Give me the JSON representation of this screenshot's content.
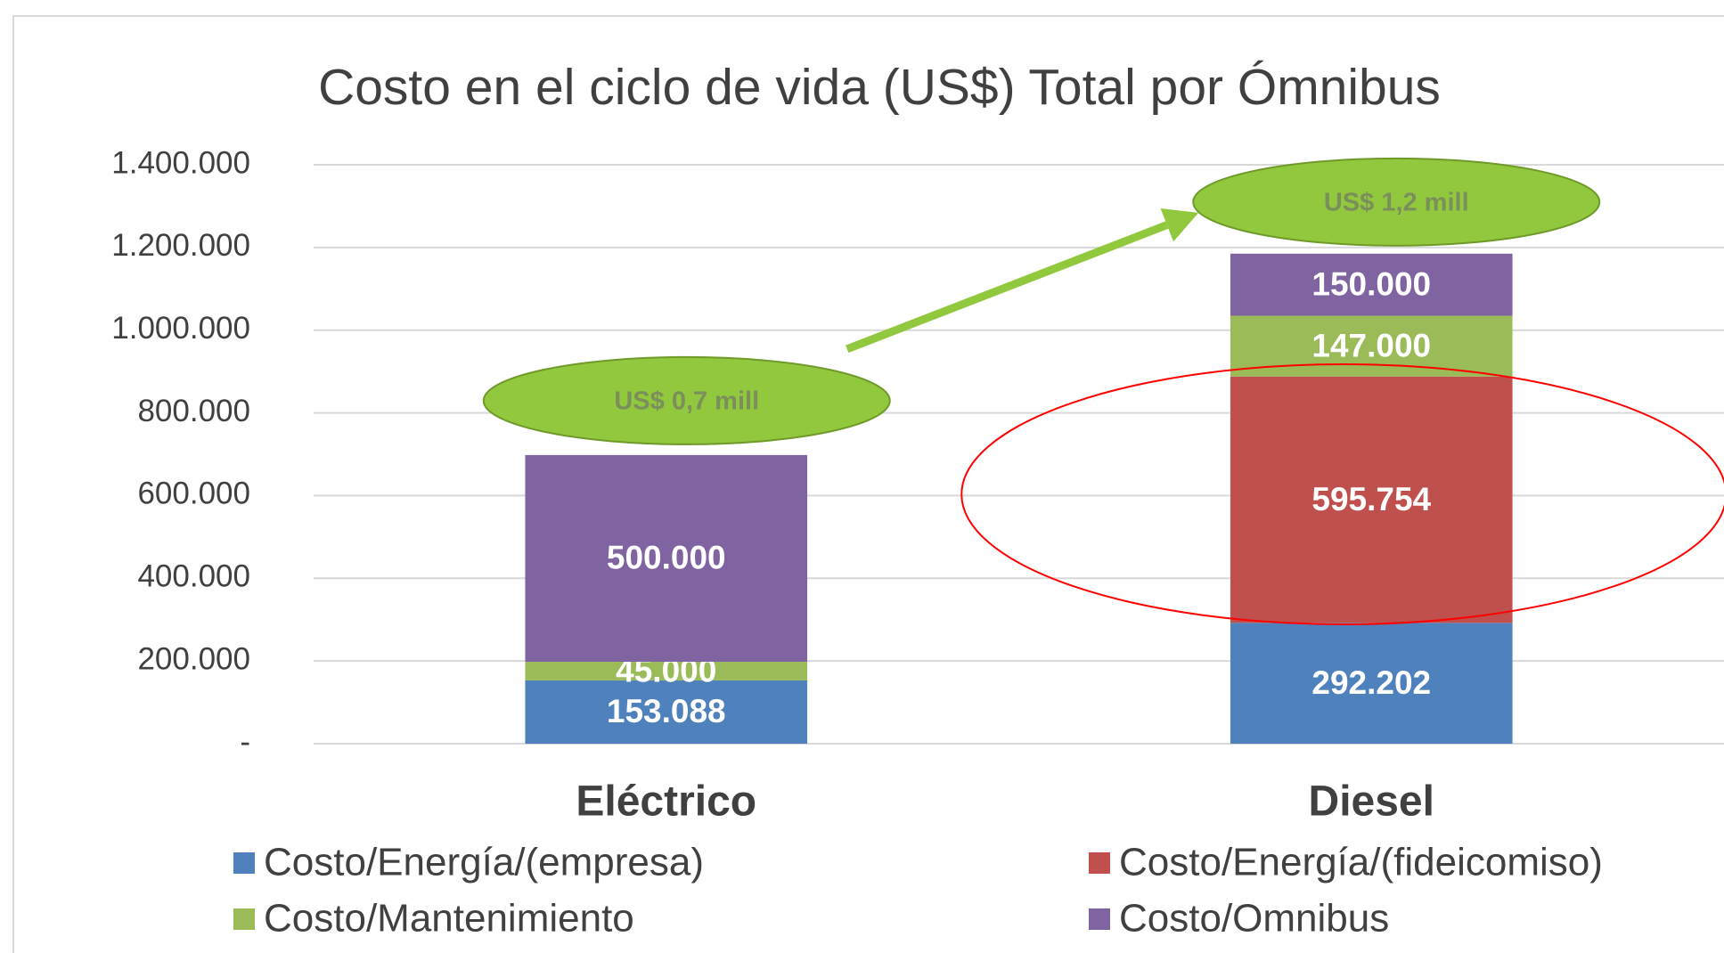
{
  "chart_data": {
    "type": "stacked_bar",
    "title": "Costo en el ciclo de vida (US$) Total por Ómnibus",
    "categories": [
      "Eléctrico",
      "Diesel"
    ],
    "series": [
      {
        "name": "Costo/Energía/(empresa)",
        "color": "#4f81bd",
        "values": [
          153088,
          292202
        ],
        "value_labels": [
          "153.088",
          "292.202"
        ]
      },
      {
        "name": "Costo/Energía/(fideicomiso)",
        "color": "#c0504d",
        "values": [
          null,
          595754
        ],
        "value_labels": [
          null,
          "595.754"
        ]
      },
      {
        "name": "Costo/Mantenimiento",
        "color": "#9bbb59",
        "values": [
          45000,
          147000
        ],
        "value_labels": [
          "45.000",
          "147.000"
        ]
      },
      {
        "name": "Costo/Omnibus",
        "color": "#8064a2",
        "values": [
          500000,
          150000
        ],
        "value_labels": [
          "500.000",
          "150.000"
        ]
      }
    ],
    "ylim": [
      0,
      1400000
    ],
    "yticks": [
      {
        "value": 0,
        "label": "-"
      },
      {
        "value": 200000,
        "label": "200.000"
      },
      {
        "value": 400000,
        "label": "400.000"
      },
      {
        "value": 600000,
        "label": "600.000"
      },
      {
        "value": 800000,
        "label": "800.000"
      },
      {
        "value": 1000000,
        "label": "1.000.000"
      },
      {
        "value": 1200000,
        "label": "1.200.000"
      },
      {
        "value": 1400000,
        "label": "1.400.000"
      }
    ],
    "grid": true,
    "legend": "bottom",
    "annotations": [
      "US$ 0,7 mill",
      "US$ 1,2 mill"
    ]
  }
}
